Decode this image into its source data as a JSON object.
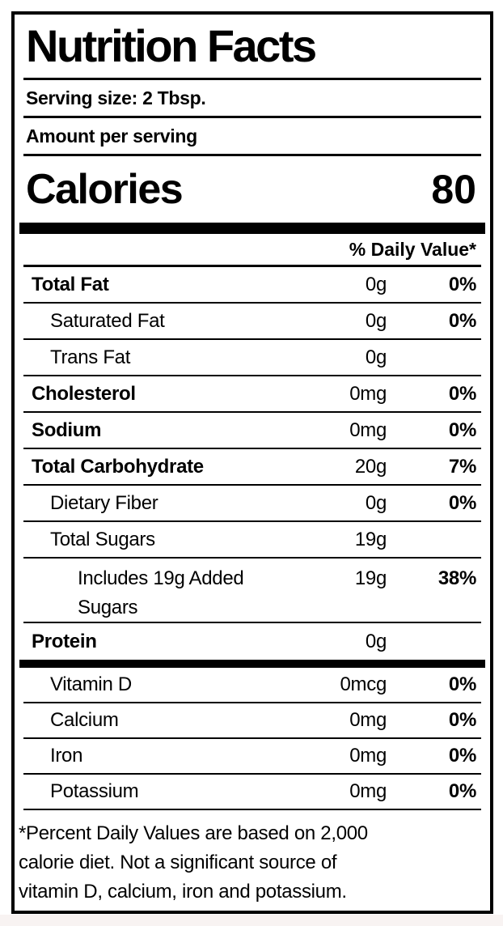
{
  "label": {
    "title": "Nutrition Facts",
    "serving_size": "Serving size: 2 Tbsp.",
    "amount_per_serving": "Amount per serving",
    "calories_label": "Calories",
    "calories_value": "80",
    "daily_value_header": "% Daily Value*",
    "nutrients": [
      {
        "name": "Total Fat",
        "amount": "0g",
        "dv": "0%"
      },
      {
        "name": "Saturated Fat",
        "amount": "0g",
        "dv": "0%"
      },
      {
        "name": "Trans Fat",
        "amount": "0g",
        "dv": ""
      },
      {
        "name": "Cholesterol",
        "amount": "0mg",
        "dv": "0%"
      },
      {
        "name": "Sodium",
        "amount": "0mg",
        "dv": "0%"
      },
      {
        "name": "Total Carbohydrate",
        "amount": "20g",
        "dv": "7%"
      },
      {
        "name": "Dietary Fiber",
        "amount": "0g",
        "dv": "0%"
      },
      {
        "name": "Total Sugars",
        "amount": "19g",
        "dv": ""
      },
      {
        "name": "Includes 19g Added Sugars",
        "amount": "19g",
        "dv": "38%"
      },
      {
        "name": "Protein",
        "amount": "0g",
        "dv": ""
      }
    ],
    "micronutrients": [
      {
        "name": "Vitamin D",
        "amount": "0mcg",
        "dv": "0%"
      },
      {
        "name": "Calcium",
        "amount": "0mg",
        "dv": "0%"
      },
      {
        "name": "Iron",
        "amount": "0mg",
        "dv": "0%"
      },
      {
        "name": "Potassium",
        "amount": "0mg",
        "dv": "0%"
      }
    ],
    "footnote_lines": [
      "*Percent Daily Values are based on 2,000",
      "calorie diet. Not a significant source of",
      "vitamin D, calcium, iron and potassium."
    ],
    "colors": {
      "text": "#000000",
      "label_background": "#ffffff",
      "page_background": "#f8f3f2"
    }
  }
}
